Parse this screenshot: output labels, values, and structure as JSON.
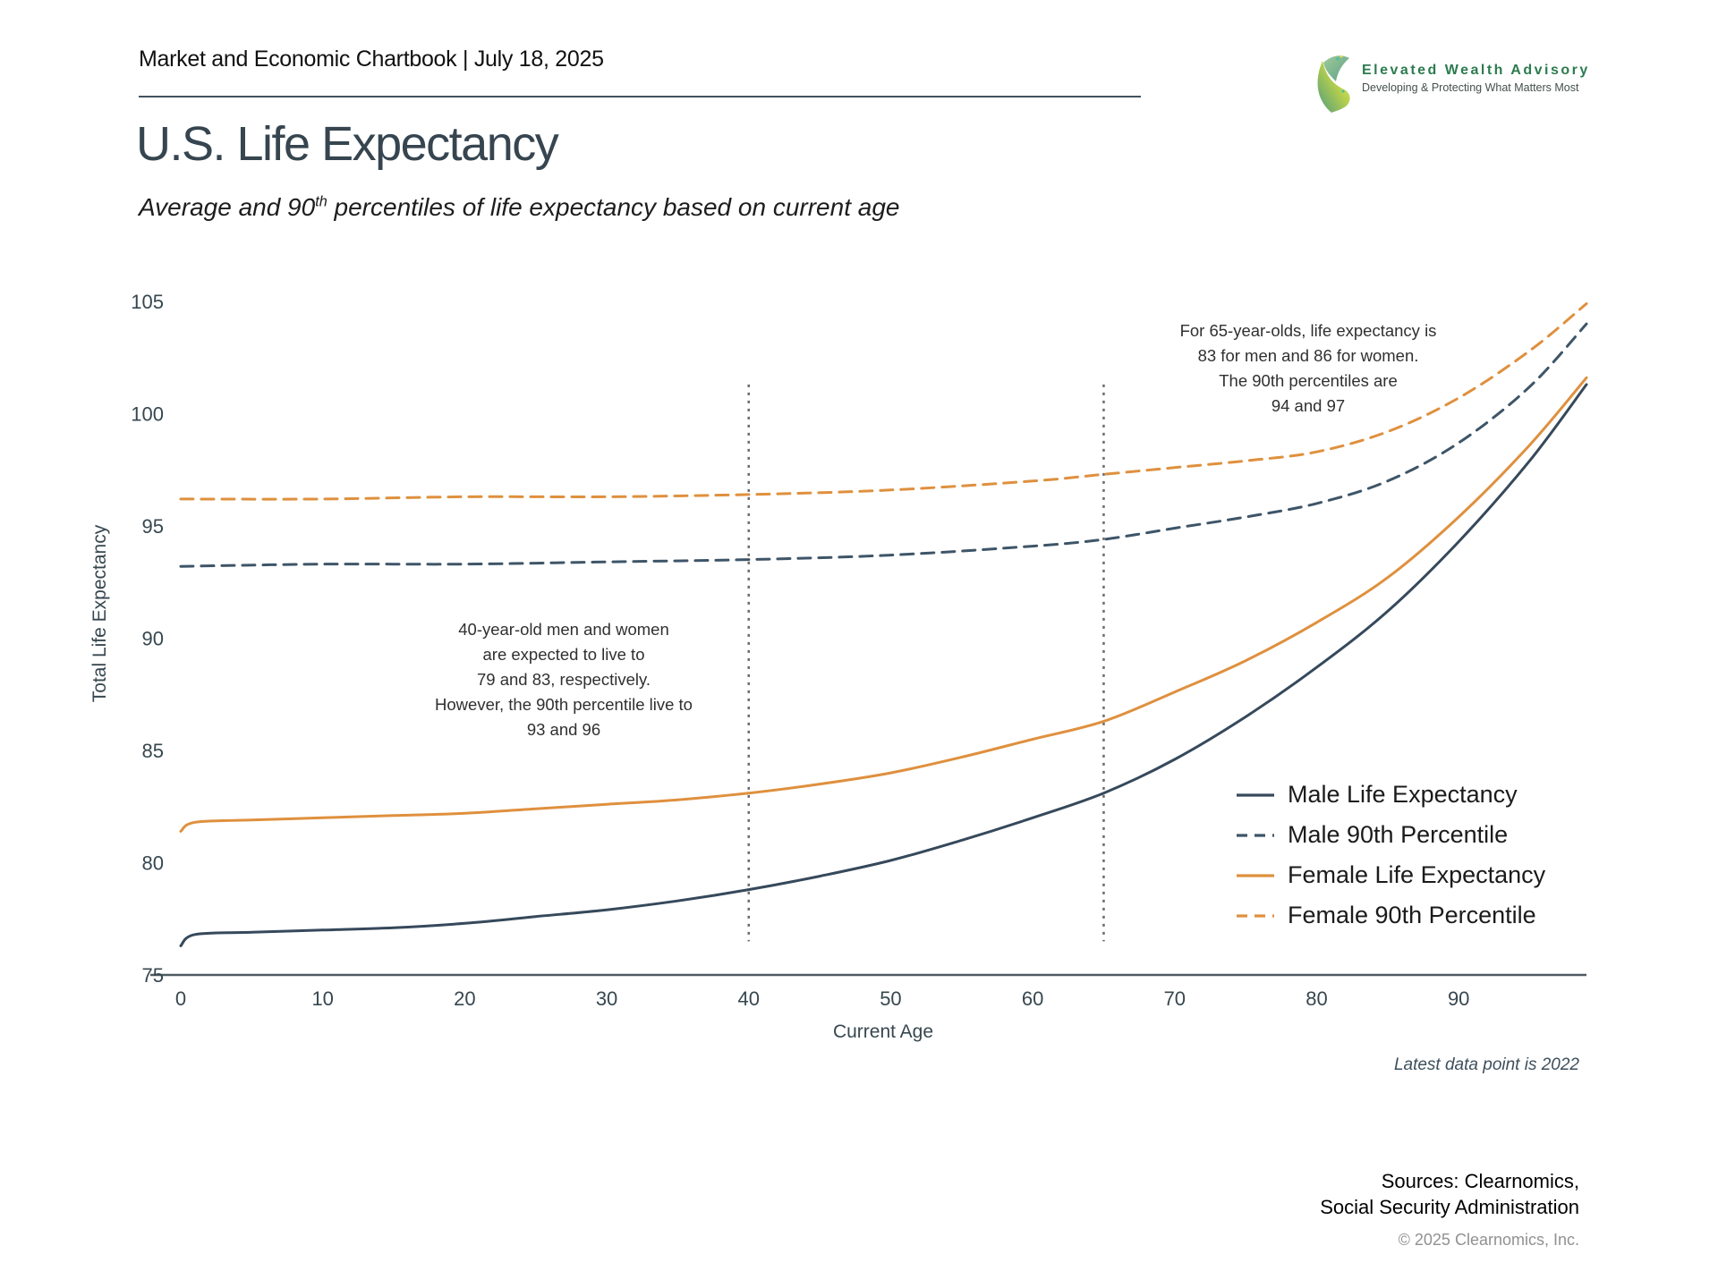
{
  "header": {
    "chartbook_title": "Market and Economic Chartbook | July 18, 2025"
  },
  "logo": {
    "name": "Elevated Wealth Advisory",
    "tagline": "Developing & Protecting What Matters Most",
    "brand_color": "#2d7b4f"
  },
  "page": {
    "title": "U.S. Life Expectancy",
    "subtitle_prefix": "Average and 90",
    "subtitle_sup": "th",
    "subtitle_suffix": " percentiles of life expectancy based on current age"
  },
  "chart_data": {
    "type": "line",
    "title": "U.S. Life Expectancy",
    "xlabel": "Current Age",
    "ylabel": "Total Life Expectancy",
    "xlim": [
      0,
      99
    ],
    "ylim": [
      75,
      105
    ],
    "x_ticks": [
      0,
      10,
      20,
      30,
      40,
      50,
      60,
      70,
      80,
      90
    ],
    "y_ticks": [
      75,
      80,
      85,
      90,
      95,
      100,
      105
    ],
    "grid": false,
    "legend_position": "inside lower right",
    "axis_color": "#4e5a63",
    "reference_lines": {
      "vertical_dotted_ages": [
        40,
        65
      ],
      "color": "#6a6a6a",
      "value_span": [
        76.5,
        101.3
      ]
    },
    "series": [
      {
        "name": "Male Life Expectancy",
        "style": "solid",
        "color": "#36495b",
        "points": [
          [
            0,
            76.3
          ],
          [
            1,
            76.8
          ],
          [
            5,
            76.9
          ],
          [
            10,
            77.0
          ],
          [
            15,
            77.1
          ],
          [
            20,
            77.3
          ],
          [
            25,
            77.6
          ],
          [
            30,
            77.9
          ],
          [
            35,
            78.3
          ],
          [
            40,
            78.8
          ],
          [
            45,
            79.4
          ],
          [
            50,
            80.1
          ],
          [
            55,
            81.0
          ],
          [
            60,
            82.0
          ],
          [
            65,
            83.1
          ],
          [
            70,
            84.6
          ],
          [
            75,
            86.5
          ],
          [
            80,
            88.7
          ],
          [
            85,
            91.2
          ],
          [
            90,
            94.3
          ],
          [
            95,
            97.9
          ],
          [
            99,
            101.3
          ]
        ]
      },
      {
        "name": "Male 90th Percentile",
        "style": "dashed",
        "color": "#3e5568",
        "points": [
          [
            0,
            93.2
          ],
          [
            10,
            93.3
          ],
          [
            20,
            93.3
          ],
          [
            30,
            93.4
          ],
          [
            40,
            93.5
          ],
          [
            50,
            93.7
          ],
          [
            60,
            94.1
          ],
          [
            65,
            94.4
          ],
          [
            70,
            94.9
          ],
          [
            75,
            95.4
          ],
          [
            80,
            96.0
          ],
          [
            85,
            97.0
          ],
          [
            90,
            98.7
          ],
          [
            95,
            101.2
          ],
          [
            99,
            104.0
          ]
        ]
      },
      {
        "name": "Female Life Expectancy",
        "style": "solid",
        "color": "#df903e",
        "points": [
          [
            0,
            81.4
          ],
          [
            1,
            81.8
          ],
          [
            5,
            81.9
          ],
          [
            10,
            82.0
          ],
          [
            15,
            82.1
          ],
          [
            20,
            82.2
          ],
          [
            25,
            82.4
          ],
          [
            30,
            82.6
          ],
          [
            35,
            82.8
          ],
          [
            40,
            83.1
          ],
          [
            45,
            83.5
          ],
          [
            50,
            84.0
          ],
          [
            55,
            84.7
          ],
          [
            60,
            85.5
          ],
          [
            65,
            86.3
          ],
          [
            70,
            87.6
          ],
          [
            75,
            89.0
          ],
          [
            80,
            90.7
          ],
          [
            85,
            92.7
          ],
          [
            90,
            95.4
          ],
          [
            95,
            98.6
          ],
          [
            99,
            101.6
          ]
        ]
      },
      {
        "name": "Female 90th Percentile",
        "style": "dashed",
        "color": "#df903e",
        "points": [
          [
            0,
            96.2
          ],
          [
            10,
            96.2
          ],
          [
            20,
            96.3
          ],
          [
            30,
            96.3
          ],
          [
            40,
            96.4
          ],
          [
            50,
            96.6
          ],
          [
            60,
            97.0
          ],
          [
            65,
            97.3
          ],
          [
            70,
            97.6
          ],
          [
            75,
            97.9
          ],
          [
            80,
            98.3
          ],
          [
            85,
            99.2
          ],
          [
            90,
            100.7
          ],
          [
            95,
            102.8
          ],
          [
            99,
            104.9
          ]
        ]
      }
    ],
    "annotations": [
      {
        "id": "age40",
        "lines": [
          "40-year-old men and women",
          "are expected to live to",
          "79 and 83, respectively.",
          "However, the 90th percentile live to",
          "93 and 96"
        ]
      },
      {
        "id": "age65",
        "lines": [
          "For 65-year-olds, life expectancy is",
          "83 for men and 86 for women.",
          "The 90th percentiles are",
          "94 and 97"
        ]
      }
    ],
    "footnote": "Latest data point is 2022"
  },
  "footer": {
    "sources_line1": "Sources: Clearnomics,",
    "sources_line2": "Social Security Administration",
    "copyright": "© 2025 Clearnomics, Inc."
  }
}
